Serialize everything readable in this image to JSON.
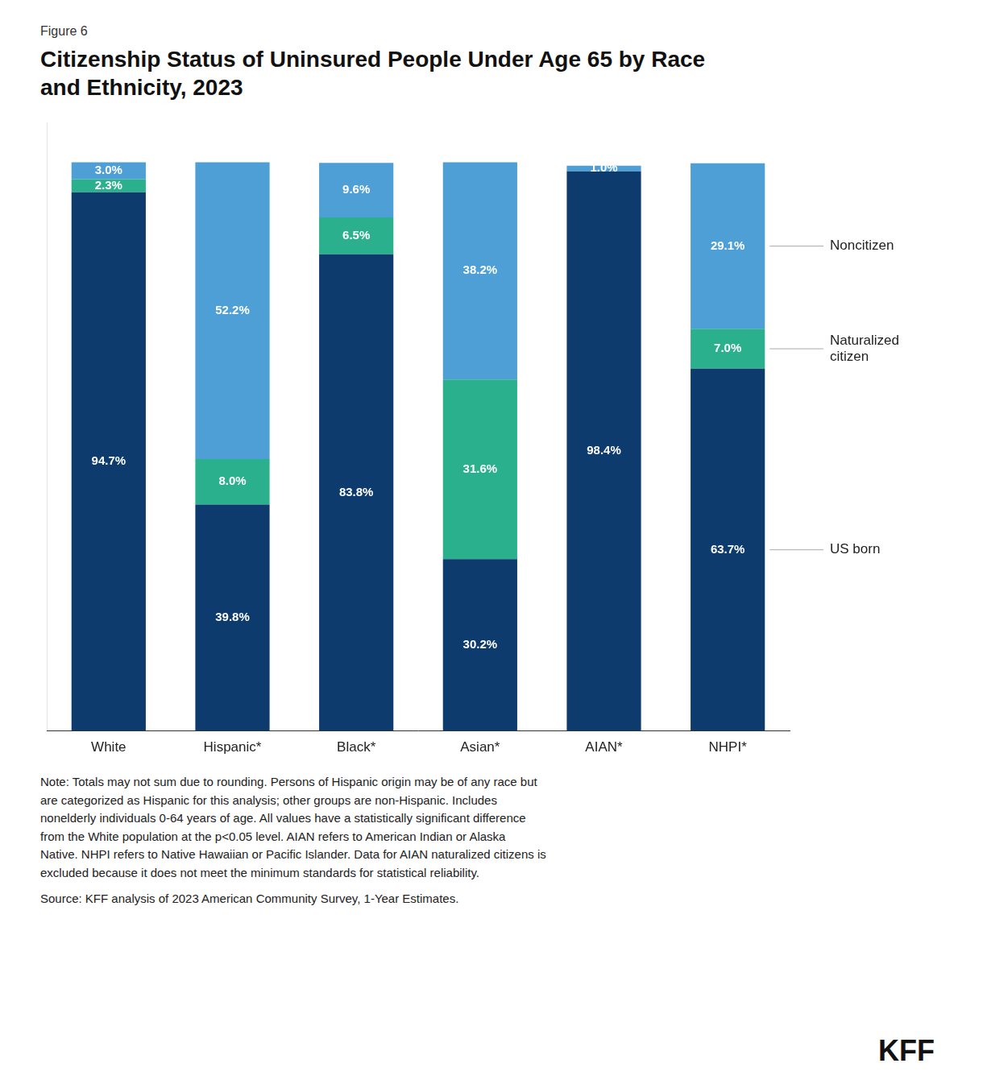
{
  "chart_data": {
    "type": "bar",
    "title": "Citizenship Status of Uninsured People Under Age 65 by Race\nand Ethnicity, 2023",
    "annotations": [
      "Figure 6",
      "Note: Totals may not sum due to rounding. Persons of Hispanic origin may be of any race but\nare categorized as Hispanic for this analysis; other groups are non-Hispanic. Includes\nnonelderly individuals 0-64 years of age. All values have a statistically significant difference\nfrom the White population at the p<0.05 level. AIAN refers to American Indian or Alaska\nNative. NHPI refers to Native Hawaiian or Pacific Islander. Data for AIAN naturalized citizens is\nexcluded because it does not meet the minimum standards for statistical reliability.",
      "Source: KFF analysis of 2023 American Community Survey, 1-Year Estimates.",
      "KFF"
    ],
    "categories": [
      "White",
      "Hispanic*",
      "Black*",
      "Asian*",
      "AIAN*",
      "NHPI*"
    ],
    "series": [
      {
        "name": "US born",
        "color": "#0d3b6e",
        "values": [
          94.7,
          39.8,
          83.8,
          30.2,
          98.4,
          63.7
        ],
        "value_labels": [
          "94.7%",
          "39.8%",
          "83.8%",
          "30.2%",
          "98.4%",
          "63.7%"
        ]
      },
      {
        "name": "Naturalized\ncitizen",
        "color": "#2ab08c",
        "values": [
          2.3,
          8.0,
          6.5,
          31.6,
          0.0,
          7.0
        ],
        "value_labels": [
          "2.3%",
          "8.0%",
          "6.5%",
          "31.6%",
          null,
          "7.0%"
        ]
      },
      {
        "name": "Noncitizen",
        "color": "#4d9fd6",
        "values": [
          3.0,
          52.2,
          9.6,
          38.2,
          1.0,
          29.1
        ],
        "value_labels": [
          "3.0%",
          "52.2%",
          "9.6%",
          "38.2%",
          "1.0%",
          "29.1%"
        ]
      }
    ],
    "ylim": [
      0,
      107
    ],
    "stacked": true,
    "data_labels": true,
    "tick_labels": "x",
    "grid": false,
    "legend": "right"
  }
}
